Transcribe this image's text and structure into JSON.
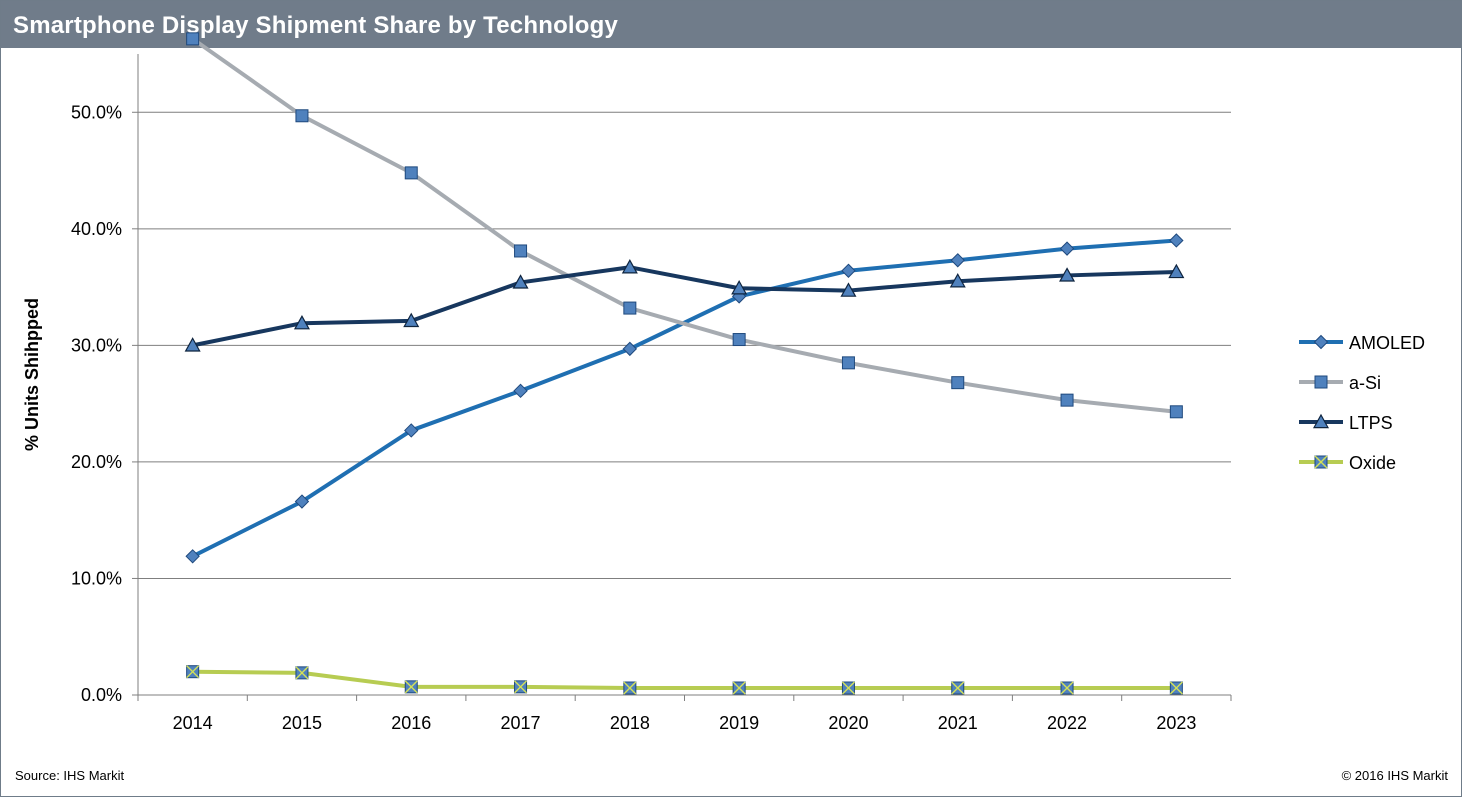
{
  "header": {
    "title": "Smartphone Display Shipment Share by Technology"
  },
  "footer": {
    "source": "Source: IHS Markit",
    "copyright": "© 2016 IHS Markit"
  },
  "chart_data": {
    "type": "line",
    "title": "Smartphone Display Shipment Share by Technology",
    "xlabel": "",
    "ylabel": "% Units Shihpped",
    "x": [
      "2014",
      "2015",
      "2016",
      "2017",
      "2018",
      "2019",
      "2020",
      "2021",
      "2022",
      "2023"
    ],
    "ylim": [
      0,
      0.55
    ],
    "yticks": [
      0.0,
      0.1,
      0.2,
      0.3,
      0.4,
      0.5
    ],
    "ytick_labels": [
      "0.0%",
      "10.0%",
      "20.0%",
      "30.0%",
      "40.0%",
      "50.0%"
    ],
    "grid": "horizontal",
    "legend_position": "right",
    "series": [
      {
        "name": "AMOLED",
        "marker": "diamond",
        "color": "#1f6fb2",
        "values": [
          0.119,
          0.166,
          0.227,
          0.261,
          0.297,
          0.342,
          0.364,
          0.373,
          0.383,
          0.39
        ]
      },
      {
        "name": "a-Si",
        "marker": "square",
        "color": "#a6abb1",
        "values": [
          0.563,
          0.497,
          0.448,
          0.381,
          0.332,
          0.305,
          0.285,
          0.268,
          0.253,
          0.243
        ]
      },
      {
        "name": "LTPS",
        "marker": "triangle",
        "color": "#17375e",
        "values": [
          0.3,
          0.319,
          0.321,
          0.354,
          0.367,
          0.349,
          0.347,
          0.355,
          0.36,
          0.363
        ]
      },
      {
        "name": "Oxide",
        "marker": "x-square",
        "color": "#b7cc52",
        "values": [
          0.02,
          0.019,
          0.007,
          0.007,
          0.006,
          0.006,
          0.006,
          0.006,
          0.006,
          0.006
        ]
      }
    ]
  }
}
